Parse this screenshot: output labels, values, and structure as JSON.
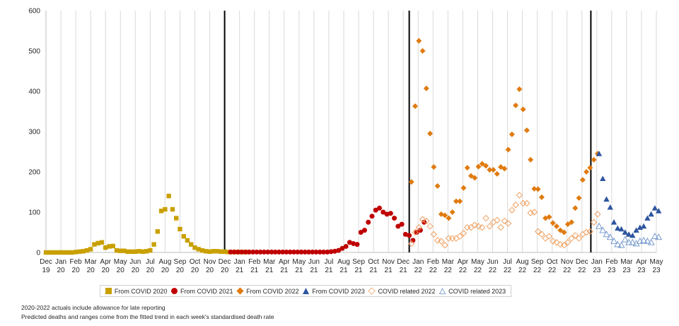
{
  "chart_data": {
    "type": "scatter",
    "title": "",
    "xlabel": "",
    "ylabel": "",
    "ylim": [
      0,
      600
    ],
    "yticks": [
      "0",
      "100",
      "200",
      "300",
      "400",
      "500",
      "600"
    ],
    "grid": "vertical gridlines at each month",
    "x_tick_labels": [
      [
        "Dec",
        "19"
      ],
      [
        "Jan",
        "20"
      ],
      [
        "Feb",
        "20"
      ],
      [
        "Mar",
        "20"
      ],
      [
        "Apr",
        "20"
      ],
      [
        "May",
        "20"
      ],
      [
        "Jun",
        "20"
      ],
      [
        "Jul",
        "20"
      ],
      [
        "Aug",
        "20"
      ],
      [
        "Sep",
        "20"
      ],
      [
        "Oct",
        "20"
      ],
      [
        "Nov",
        "20"
      ],
      [
        "Dec",
        "20"
      ],
      [
        "Jan",
        "21"
      ],
      [
        "Feb",
        "21"
      ],
      [
        "Mar",
        "21"
      ],
      [
        "Apr",
        "21"
      ],
      [
        "May",
        "21"
      ],
      [
        "Jun",
        "21"
      ],
      [
        "Jul",
        "21"
      ],
      [
        "Aug",
        "21"
      ],
      [
        "Sep",
        "21"
      ],
      [
        "Oct",
        "21"
      ],
      [
        "Nov",
        "21"
      ],
      [
        "Dec",
        "21"
      ],
      [
        "Jan",
        "22"
      ],
      [
        "Feb",
        "22"
      ],
      [
        "Mar",
        "22"
      ],
      [
        "Apr",
        "22"
      ],
      [
        "May",
        "22"
      ],
      [
        "Jun",
        "22"
      ],
      [
        "Jul",
        "22"
      ],
      [
        "Aug",
        "22"
      ],
      [
        "Sep",
        "22"
      ],
      [
        "Oct",
        "22"
      ],
      [
        "Nov",
        "22"
      ],
      [
        "Dec",
        "22"
      ],
      [
        "Jan",
        "23"
      ],
      [
        "Feb",
        "23"
      ],
      [
        "Mar",
        "23"
      ],
      [
        "Apr",
        "23"
      ],
      [
        "May",
        "23"
      ]
    ],
    "x_unit": "months since Dec 19 (0 = Dec 19)",
    "vertical_lines_at_month": [
      12,
      24.4,
      36.6
    ],
    "legend_position": "bottom",
    "series": [
      {
        "name": "From COVID 2020",
        "color": "#c9a000",
        "marker": "square",
        "filled": true,
        "points": [
          [
            0,
            0
          ],
          [
            0.25,
            0
          ],
          [
            0.5,
            0
          ],
          [
            0.75,
            0
          ],
          [
            1,
            0
          ],
          [
            1.25,
            0
          ],
          [
            1.5,
            0
          ],
          [
            1.75,
            0
          ],
          [
            2,
            1
          ],
          [
            2.25,
            2
          ],
          [
            2.5,
            3
          ],
          [
            2.75,
            5
          ],
          [
            3,
            8
          ],
          [
            3.25,
            20
          ],
          [
            3.5,
            23
          ],
          [
            3.75,
            25
          ],
          [
            4,
            12
          ],
          [
            4.25,
            15
          ],
          [
            4.5,
            16
          ],
          [
            4.75,
            5
          ],
          [
            5,
            4
          ],
          [
            5.25,
            4
          ],
          [
            5.5,
            2
          ],
          [
            5.75,
            2
          ],
          [
            6,
            2
          ],
          [
            6.25,
            3
          ],
          [
            6.5,
            2
          ],
          [
            6.75,
            3
          ],
          [
            7,
            5
          ],
          [
            7.25,
            20
          ],
          [
            7.5,
            52
          ],
          [
            7.75,
            103
          ],
          [
            8,
            107
          ],
          [
            8.25,
            140
          ],
          [
            8.5,
            107
          ],
          [
            8.75,
            85
          ],
          [
            9,
            58
          ],
          [
            9.25,
            40
          ],
          [
            9.5,
            30
          ],
          [
            9.75,
            20
          ],
          [
            10,
            12
          ],
          [
            10.25,
            8
          ],
          [
            10.5,
            5
          ],
          [
            10.75,
            3
          ],
          [
            11,
            2
          ],
          [
            11.25,
            3
          ],
          [
            11.5,
            3
          ],
          [
            11.75,
            2
          ],
          [
            12,
            2
          ],
          [
            12.25,
            1
          ],
          [
            12.5,
            1
          ],
          [
            12.75,
            1
          ],
          [
            13,
            1
          ],
          [
            13.25,
            1
          ],
          [
            13.5,
            1
          ]
        ]
      },
      {
        "name": "From COVID 2021",
        "color": "#c00000",
        "marker": "circle",
        "filled": true,
        "points": [
          [
            12.4,
            1
          ],
          [
            12.65,
            1
          ],
          [
            12.9,
            1
          ],
          [
            13.15,
            1
          ],
          [
            13.4,
            1
          ],
          [
            13.65,
            1
          ],
          [
            13.9,
            1
          ],
          [
            14.15,
            1
          ],
          [
            14.4,
            1
          ],
          [
            14.65,
            1
          ],
          [
            14.9,
            1
          ],
          [
            15.15,
            1
          ],
          [
            15.4,
            1
          ],
          [
            15.65,
            1
          ],
          [
            15.9,
            1
          ],
          [
            16.15,
            1
          ],
          [
            16.4,
            1
          ],
          [
            16.65,
            1
          ],
          [
            16.9,
            1
          ],
          [
            17.15,
            1
          ],
          [
            17.4,
            1
          ],
          [
            17.65,
            1
          ],
          [
            17.9,
            1
          ],
          [
            18.15,
            1
          ],
          [
            18.4,
            1
          ],
          [
            18.65,
            1
          ],
          [
            18.9,
            1
          ],
          [
            19.15,
            2
          ],
          [
            19.4,
            3
          ],
          [
            19.65,
            5
          ],
          [
            19.9,
            10
          ],
          [
            20.15,
            15
          ],
          [
            20.4,
            25
          ],
          [
            20.65,
            22
          ],
          [
            20.9,
            20
          ],
          [
            21.15,
            50
          ],
          [
            21.4,
            55
          ],
          [
            21.65,
            75
          ],
          [
            21.9,
            90
          ],
          [
            22.15,
            105
          ],
          [
            22.4,
            110
          ],
          [
            22.65,
            100
          ],
          [
            22.9,
            95
          ],
          [
            23.15,
            97
          ],
          [
            23.4,
            85
          ],
          [
            23.65,
            65
          ],
          [
            23.9,
            70
          ],
          [
            24.15,
            45
          ],
          [
            24.4,
            42
          ],
          [
            24.65,
            30
          ],
          [
            24.9,
            50
          ],
          [
            25.15,
            55
          ],
          [
            25.4,
            75
          ]
        ]
      },
      {
        "name": "From COVID 2022",
        "color": "#e07b10",
        "marker": "diamond",
        "filled": true,
        "points": [
          [
            24.55,
            175
          ],
          [
            24.8,
            363
          ],
          [
            25.05,
            525
          ],
          [
            25.3,
            500
          ],
          [
            25.55,
            407
          ],
          [
            25.8,
            295
          ],
          [
            26.05,
            212
          ],
          [
            26.3,
            165
          ],
          [
            26.55,
            95
          ],
          [
            26.8,
            92
          ],
          [
            27.05,
            85
          ],
          [
            27.3,
            100
          ],
          [
            27.55,
            127
          ],
          [
            27.8,
            127
          ],
          [
            28.05,
            160
          ],
          [
            28.3,
            210
          ],
          [
            28.55,
            190
          ],
          [
            28.8,
            185
          ],
          [
            29.05,
            213
          ],
          [
            29.3,
            220
          ],
          [
            29.55,
            215
          ],
          [
            29.8,
            205
          ],
          [
            30.05,
            205
          ],
          [
            30.3,
            195
          ],
          [
            30.55,
            212
          ],
          [
            30.8,
            208
          ],
          [
            31.05,
            255
          ],
          [
            31.3,
            293
          ],
          [
            31.55,
            365
          ],
          [
            31.8,
            405
          ],
          [
            32.05,
            355
          ],
          [
            32.3,
            303
          ],
          [
            32.55,
            230
          ],
          [
            32.8,
            158
          ],
          [
            33.05,
            157
          ],
          [
            33.3,
            137
          ],
          [
            33.55,
            85
          ],
          [
            33.8,
            88
          ],
          [
            34.05,
            73
          ],
          [
            34.3,
            65
          ],
          [
            34.55,
            55
          ],
          [
            34.8,
            50
          ],
          [
            35.05,
            70
          ],
          [
            35.3,
            75
          ],
          [
            35.55,
            110
          ],
          [
            35.8,
            135
          ],
          [
            36.05,
            180
          ],
          [
            36.3,
            200
          ],
          [
            36.55,
            210
          ],
          [
            36.8,
            230
          ],
          [
            37.05,
            245
          ]
        ]
      },
      {
        "name": "From COVID 2023",
        "color": "#2e55a0",
        "marker": "triangle",
        "filled": true,
        "points": [
          [
            37.15,
            245
          ],
          [
            37.4,
            183
          ],
          [
            37.65,
            132
          ],
          [
            37.9,
            112
          ],
          [
            38.15,
            75
          ],
          [
            38.4,
            60
          ],
          [
            38.65,
            58
          ],
          [
            38.9,
            50
          ],
          [
            39.15,
            45
          ],
          [
            39.4,
            42
          ],
          [
            39.65,
            55
          ],
          [
            39.9,
            62
          ],
          [
            40.15,
            65
          ],
          [
            40.4,
            85
          ],
          [
            40.65,
            95
          ],
          [
            40.9,
            110
          ],
          [
            41.15,
            103
          ]
        ]
      },
      {
        "name": "COVID related 2022",
        "color": "#f0a060",
        "marker": "diamond",
        "filled": false,
        "points": [
          [
            24.55,
            22
          ],
          [
            24.8,
            50
          ],
          [
            25.05,
            62
          ],
          [
            25.3,
            82
          ],
          [
            25.55,
            78
          ],
          [
            25.8,
            65
          ],
          [
            26.05,
            45
          ],
          [
            26.3,
            30
          ],
          [
            26.55,
            28
          ],
          [
            26.8,
            18
          ],
          [
            27.05,
            35
          ],
          [
            27.3,
            35
          ],
          [
            27.55,
            35
          ],
          [
            27.8,
            40
          ],
          [
            28.05,
            48
          ],
          [
            28.3,
            62
          ],
          [
            28.55,
            62
          ],
          [
            28.8,
            68
          ],
          [
            29.05,
            65
          ],
          [
            29.3,
            62
          ],
          [
            29.55,
            85
          ],
          [
            29.8,
            65
          ],
          [
            30.05,
            75
          ],
          [
            30.3,
            80
          ],
          [
            30.55,
            62
          ],
          [
            30.8,
            78
          ],
          [
            31.05,
            72
          ],
          [
            31.3,
            105
          ],
          [
            31.55,
            118
          ],
          [
            31.8,
            142
          ],
          [
            32.05,
            122
          ],
          [
            32.3,
            122
          ],
          [
            32.55,
            98
          ],
          [
            32.8,
            100
          ],
          [
            33.05,
            52
          ],
          [
            33.3,
            45
          ],
          [
            33.55,
            35
          ],
          [
            33.8,
            40
          ],
          [
            34.05,
            28
          ],
          [
            34.3,
            25
          ],
          [
            34.55,
            20
          ],
          [
            34.8,
            18
          ],
          [
            35.05,
            25
          ],
          [
            35.3,
            35
          ],
          [
            35.55,
            42
          ],
          [
            35.8,
            35
          ],
          [
            36.05,
            45
          ],
          [
            36.3,
            50
          ],
          [
            36.55,
            52
          ],
          [
            36.8,
            75
          ],
          [
            37.05,
            95
          ]
        ]
      },
      {
        "name": "COVID related 2023",
        "color": "#7a9cd0",
        "marker": "triangle",
        "filled": false,
        "points": [
          [
            37.15,
            65
          ],
          [
            37.4,
            55
          ],
          [
            37.65,
            45
          ],
          [
            37.9,
            38
          ],
          [
            38.15,
            28
          ],
          [
            38.4,
            20
          ],
          [
            38.65,
            18
          ],
          [
            38.9,
            32
          ],
          [
            39.15,
            25
          ],
          [
            39.4,
            25
          ],
          [
            39.65,
            22
          ],
          [
            39.9,
            28
          ],
          [
            40.15,
            30
          ],
          [
            40.4,
            28
          ],
          [
            40.65,
            25
          ],
          [
            40.9,
            40
          ],
          [
            41.15,
            38
          ]
        ]
      }
    ]
  },
  "legend": {
    "items": [
      {
        "label": "From COVID 2020",
        "color": "#c9a000",
        "shape": "square",
        "filled": true
      },
      {
        "label": "From COVID 2021",
        "color": "#c00000",
        "shape": "circle",
        "filled": true
      },
      {
        "label": "From COVID 2022",
        "color": "#e07b10",
        "shape": "diamond",
        "filled": true
      },
      {
        "label": "From COVID 2023",
        "color": "#2e55a0",
        "shape": "triangle",
        "filled": true
      },
      {
        "label": "COVID related 2022",
        "color": "#f0a060",
        "shape": "diamond",
        "filled": false
      },
      {
        "label": "COVID related 2023",
        "color": "#7a9cd0",
        "shape": "triangle",
        "filled": false
      }
    ]
  },
  "notes": {
    "line1": "2020-2022  actuals include allowance for late reporting",
    "line2": "Predicted deaths and ranges come from the fitted trend in each week's standardised death rate"
  }
}
